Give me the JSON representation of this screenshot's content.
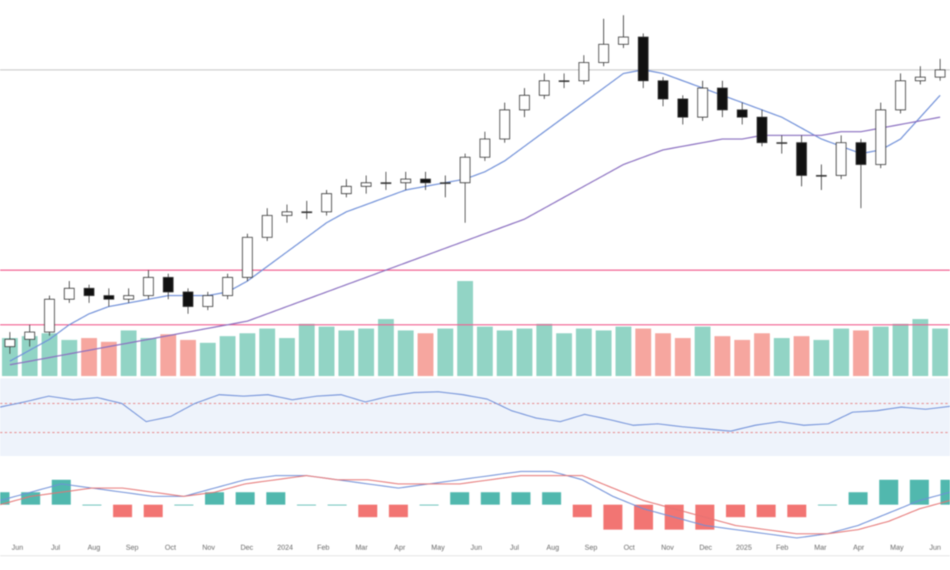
{
  "chart_data": {
    "type": "candlestick",
    "up_color": "#ffffff",
    "down_color": "#111111",
    "open": [
      7,
      9,
      11,
      20,
      23,
      21,
      20,
      21,
      26,
      22,
      18,
      21,
      26,
      37,
      43,
      44,
      44,
      49,
      51,
      52,
      52,
      53,
      52,
      52,
      59,
      64,
      72,
      76,
      80,
      80,
      85,
      90,
      92,
      80,
      75,
      70,
      78,
      72,
      70,
      63,
      63,
      54,
      54,
      63,
      57,
      72,
      80,
      81
    ],
    "high": [
      11,
      13,
      21,
      25,
      24,
      23,
      23,
      28,
      27,
      23,
      22,
      27,
      38,
      45,
      46,
      47,
      50,
      53,
      54,
      55,
      55,
      55,
      54,
      60,
      66,
      74,
      78,
      82,
      82,
      87,
      97,
      98,
      93,
      81,
      76,
      80,
      80,
      74,
      72,
      65,
      65,
      57,
      65,
      64,
      74,
      82,
      84,
      86
    ],
    "low": [
      5,
      7,
      10,
      19,
      19,
      18,
      19,
      20,
      20,
      16,
      17,
      20,
      25,
      36,
      41,
      42,
      43,
      48,
      49,
      50,
      50,
      50,
      48,
      41,
      58,
      63,
      70,
      75,
      78,
      79,
      84,
      89,
      78,
      73,
      68,
      69,
      70,
      68,
      62,
      60,
      51,
      50,
      53,
      45,
      56,
      71,
      79,
      80
    ],
    "close": [
      9,
      11,
      20,
      23,
      21,
      20,
      21,
      26,
      22,
      18,
      21,
      26,
      37,
      43,
      44,
      44,
      49,
      51,
      52,
      52,
      53,
      52,
      52,
      59,
      64,
      72,
      76,
      80,
      80,
      85,
      90,
      92,
      80,
      75,
      70,
      78,
      72,
      70,
      63,
      63,
      54,
      54,
      63,
      57,
      72,
      80,
      81,
      83
    ],
    "ylim": [
      0,
      100
    ],
    "moving_averages": [
      {
        "color": "#6f8fd8",
        "values": [
          3,
          6,
          9,
          13,
          16,
          18,
          19,
          20,
          21,
          21,
          21,
          22,
          25,
          29,
          33,
          37,
          41,
          44,
          46,
          48,
          50,
          51,
          52,
          53,
          55,
          58,
          62,
          66,
          70,
          74,
          78,
          82,
          83,
          82,
          80,
          78,
          76,
          74,
          72,
          70,
          67,
          64,
          62,
          60,
          61,
          64,
          70,
          76
        ]
      },
      {
        "color": "#8a6fc0",
        "values": [
          2,
          3,
          4,
          5,
          6,
          7,
          8,
          9,
          10,
          11,
          12,
          13,
          14,
          16,
          18,
          20,
          22,
          24,
          26,
          28,
          30,
          32,
          34,
          36,
          38,
          40,
          42,
          45,
          48,
          51,
          54,
          57,
          59,
          61,
          62,
          63,
          64,
          64,
          65,
          65,
          65,
          65,
          66,
          66,
          67,
          68,
          69,
          70
        ]
      }
    ],
    "levels": [
      {
        "value": 83,
        "color": "#cccccc"
      },
      {
        "value": 28,
        "color": "#f06292"
      },
      {
        "value": 13,
        "color": "#f06292"
      }
    ],
    "volume": {
      "ylim": [
        0,
        100
      ],
      "up_color": "#7fcdbb",
      "down_color": "#f4978e",
      "values": [
        40,
        42,
        45,
        38,
        40,
        36,
        48,
        40,
        44,
        38,
        35,
        42,
        45,
        50,
        40,
        55,
        52,
        48,
        50,
        60,
        48,
        45,
        50,
        100,
        52,
        48,
        50,
        55,
        45,
        50,
        48,
        52,
        50,
        45,
        40,
        52,
        42,
        38,
        45,
        40,
        42,
        38,
        50,
        48,
        52,
        55,
        60,
        50
      ]
    },
    "rsi": {
      "ylim": [
        0,
        100
      ],
      "color": "#6f8fd8",
      "levels": [
        70,
        30
      ],
      "values": [
        65,
        72,
        80,
        75,
        78,
        70,
        45,
        52,
        70,
        82,
        80,
        82,
        75,
        80,
        82,
        72,
        80,
        85,
        86,
        82,
        76,
        60,
        50,
        45,
        55,
        48,
        40,
        42,
        38,
        35,
        32,
        40,
        45,
        40,
        42,
        58,
        60,
        65,
        62,
        66
      ]
    },
    "macd": {
      "ylim": [
        -10,
        10
      ],
      "macd_color": "#6f8fd8",
      "signal_color": "#e57373",
      "hist_up": "#26a69a",
      "hist_down": "#ef5350",
      "macd": [
        1,
        3,
        5,
        4,
        3,
        2,
        2,
        4,
        6,
        7,
        7,
        6,
        5,
        4,
        5,
        6,
        7,
        8,
        8,
        6,
        2,
        -1,
        -3,
        -5,
        -6,
        -7,
        -8,
        -7,
        -5,
        -2,
        1,
        3
      ],
      "signal": [
        0,
        2,
        3,
        4,
        4,
        3,
        2,
        3,
        5,
        6,
        7,
        6,
        6,
        5,
        5,
        5,
        6,
        7,
        7,
        7,
        4,
        1,
        -1,
        -3,
        -5,
        -6,
        -7,
        -7,
        -6,
        -4,
        -1,
        1
      ]
    },
    "x_labels": [
      "Jun",
      "Jul",
      "Aug",
      "Sep",
      "Oct",
      "Nov",
      "Dec",
      "2024",
      "Feb",
      "Mar",
      "Apr",
      "May",
      "Jun",
      "Jul",
      "Aug",
      "Sep",
      "Oct",
      "Nov",
      "Dec",
      "2025",
      "Feb",
      "Mar",
      "Apr",
      "May",
      "Jun"
    ]
  }
}
